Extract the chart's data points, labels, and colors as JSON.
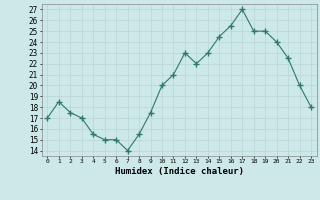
{
  "x": [
    0,
    1,
    2,
    3,
    4,
    5,
    6,
    7,
    8,
    9,
    10,
    11,
    12,
    13,
    14,
    15,
    16,
    17,
    18,
    19,
    20,
    21,
    22,
    23
  ],
  "y": [
    17,
    18.5,
    17.5,
    17,
    15.5,
    15,
    15,
    14,
    15.5,
    17.5,
    20,
    21,
    23,
    22,
    23,
    24.5,
    25.5,
    27,
    25,
    25,
    24,
    22.5,
    20,
    18
  ],
  "xlabel": "Humidex (Indice chaleur)",
  "xlim": [
    -0.5,
    23.5
  ],
  "ylim": [
    13.5,
    27.5
  ],
  "yticks": [
    14,
    15,
    16,
    17,
    18,
    19,
    20,
    21,
    22,
    23,
    24,
    25,
    26,
    27
  ],
  "xtick_labels": [
    "0",
    "1",
    "2",
    "3",
    "4",
    "5",
    "6",
    "7",
    "8",
    "9",
    "10",
    "11",
    "12",
    "13",
    "14",
    "15",
    "16",
    "17",
    "18",
    "19",
    "20",
    "21",
    "22",
    "23"
  ],
  "line_color": "#2d7a6a",
  "marker": "+",
  "marker_size": 4,
  "bg_color": "#cce8e8",
  "grid_color": "#b8d4d4",
  "fig_bg": "#cce8e8",
  "spine_color": "#888888"
}
